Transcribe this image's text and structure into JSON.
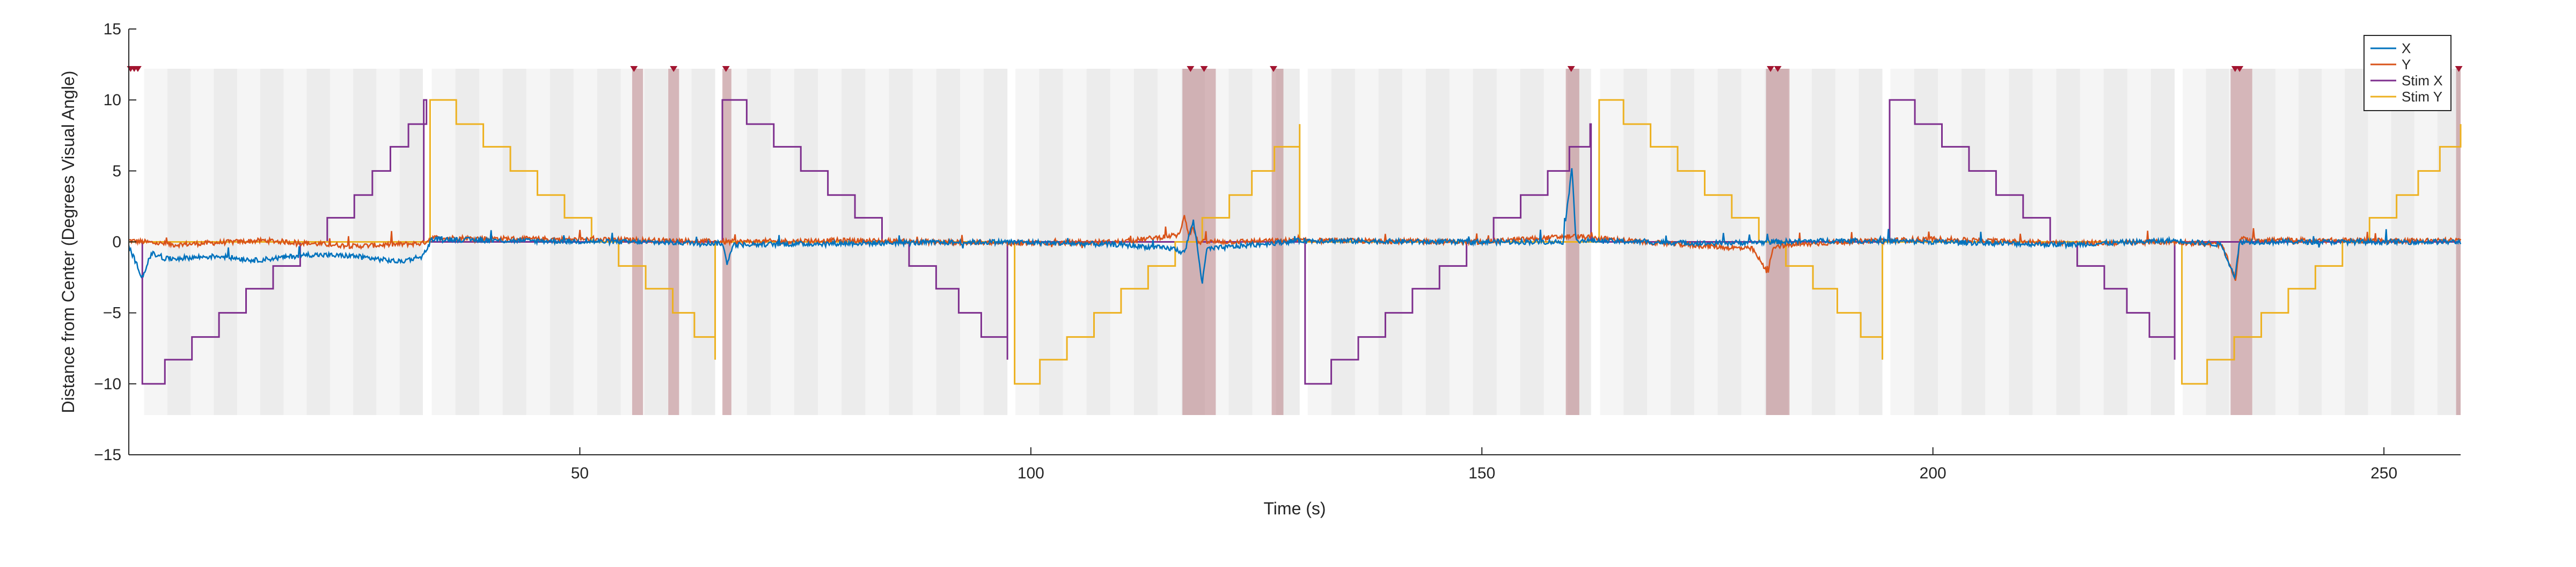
{
  "chart_data": {
    "type": "line",
    "title": "",
    "xlabel": "Time (s)",
    "ylabel": "Distance from Center (Degrees Visual Angle)",
    "xlim": [
      0,
      258.5
    ],
    "ylim": [
      -15,
      15
    ],
    "xticks": [
      50,
      100,
      150,
      200,
      250
    ],
    "yticks": [
      -15,
      -10,
      -5,
      0,
      5,
      10,
      15
    ],
    "grid": false,
    "legend_position": "top-right",
    "legend": [
      "X",
      "Y",
      "Stim X",
      "Stim Y"
    ],
    "colors": {
      "X": "#0072bd",
      "Y": "#d95319",
      "Stim X": "#7e2f8e",
      "Stim Y": "#edb120",
      "trial_shade_light": "#ececec",
      "trial_shade_dark": "#f5f5f5",
      "blink_shade": "#b06a72",
      "blink_marker": "#a2142f"
    },
    "trial_blocks": [
      [
        1.7,
        32.6
      ],
      [
        33.6,
        65.0
      ],
      [
        65.9,
        97.4
      ],
      [
        98.3,
        129.8
      ],
      [
        130.7,
        162.1
      ],
      [
        163.1,
        194.4
      ],
      [
        195.3,
        226.8
      ],
      [
        227.7,
        258.5
      ]
    ],
    "blink_periods": [
      [
        55.8,
        57.0
      ],
      [
        59.8,
        61.0
      ],
      [
        65.8,
        66.8
      ],
      [
        116.8,
        120.5
      ],
      [
        126.7,
        128.0
      ],
      [
        159.3,
        160.8
      ],
      [
        181.5,
        184.1
      ],
      [
        233.0,
        235.4
      ],
      [
        258.0,
        258.5
      ]
    ],
    "blink_markers": [
      0.2,
      0.6,
      1.0,
      56.0,
      60.4,
      66.2,
      117.7,
      119.2,
      126.9,
      159.9,
      182.0,
      182.8,
      233.5,
      234.0,
      258.3
    ],
    "stim_x_steps": [
      [
        0,
        0
      ],
      [
        1.5,
        -10
      ],
      [
        4.0,
        -8.3
      ],
      [
        7.0,
        -6.7
      ],
      [
        10.0,
        -5
      ],
      [
        13.0,
        -3.3
      ],
      [
        16.0,
        -1.7
      ],
      [
        19.0,
        0
      ],
      [
        22.0,
        1.7
      ],
      [
        25.0,
        3.3
      ],
      [
        27.0,
        5
      ],
      [
        29.0,
        6.7
      ],
      [
        31.0,
        8.3
      ],
      [
        33.0,
        10
      ],
      [
        32.7,
        10
      ],
      [
        32.7,
        0
      ],
      [
        65.0,
        0
      ],
      [
        65.8,
        10
      ],
      [
        68.5,
        8.3
      ],
      [
        71.5,
        6.7
      ],
      [
        74.5,
        5
      ],
      [
        77.5,
        3.3
      ],
      [
        80.5,
        1.7
      ],
      [
        83.5,
        0
      ],
      [
        86.5,
        -1.7
      ],
      [
        89.5,
        -3.3
      ],
      [
        92.0,
        -5
      ],
      [
        94.5,
        -6.7
      ],
      [
        97.4,
        -8.3
      ],
      [
        97.4,
        0
      ],
      [
        129.8,
        0
      ],
      [
        130.4,
        -10
      ],
      [
        133.3,
        -8.3
      ],
      [
        136.3,
        -6.7
      ],
      [
        139.3,
        -5
      ],
      [
        142.3,
        -3.3
      ],
      [
        145.3,
        -1.7
      ],
      [
        148.3,
        0
      ],
      [
        151.3,
        1.7
      ],
      [
        154.3,
        3.3
      ],
      [
        157.3,
        5
      ],
      [
        159.7,
        6.7
      ],
      [
        162.0,
        8.3
      ],
      [
        162.1,
        0
      ],
      [
        194.4,
        0
      ],
      [
        195.2,
        10
      ],
      [
        198.0,
        8.3
      ],
      [
        201.0,
        6.7
      ],
      [
        204.0,
        5
      ],
      [
        207.0,
        3.3
      ],
      [
        210.0,
        1.7
      ],
      [
        213.0,
        0
      ],
      [
        216.0,
        -1.7
      ],
      [
        219.0,
        -3.3
      ],
      [
        221.5,
        -5
      ],
      [
        224.0,
        -6.7
      ],
      [
        226.8,
        -8.3
      ],
      [
        226.8,
        0
      ],
      [
        258.5,
        0
      ]
    ],
    "stim_y_steps": [
      [
        0,
        0
      ],
      [
        32.7,
        0
      ],
      [
        33.4,
        10
      ],
      [
        36.3,
        8.3
      ],
      [
        39.3,
        6.7
      ],
      [
        42.3,
        5
      ],
      [
        45.3,
        3.3
      ],
      [
        48.3,
        1.7
      ],
      [
        51.3,
        0
      ],
      [
        54.3,
        -1.7
      ],
      [
        57.3,
        -3.3
      ],
      [
        60.3,
        -5
      ],
      [
        62.7,
        -6.7
      ],
      [
        65.0,
        -8.3
      ],
      [
        65.0,
        0
      ],
      [
        97.4,
        0
      ],
      [
        98.2,
        -10
      ],
      [
        101.0,
        -8.3
      ],
      [
        104.0,
        -6.7
      ],
      [
        107.0,
        -5
      ],
      [
        110.0,
        -3.3
      ],
      [
        113.0,
        -1.7
      ],
      [
        116.0,
        0
      ],
      [
        119.0,
        1.7
      ],
      [
        122.0,
        3.3
      ],
      [
        124.5,
        5
      ],
      [
        127.0,
        6.7
      ],
      [
        129.8,
        8.3
      ],
      [
        129.8,
        0
      ],
      [
        162.1,
        0
      ],
      [
        163.0,
        10
      ],
      [
        165.7,
        8.3
      ],
      [
        168.7,
        6.7
      ],
      [
        171.7,
        5
      ],
      [
        174.7,
        3.3
      ],
      [
        177.7,
        1.7
      ],
      [
        180.7,
        0
      ],
      [
        183.7,
        -1.7
      ],
      [
        186.7,
        -3.3
      ],
      [
        189.4,
        -5
      ],
      [
        192.0,
        -6.7
      ],
      [
        194.4,
        -8.3
      ],
      [
        194.4,
        0
      ],
      [
        226.8,
        0
      ],
      [
        227.6,
        -10
      ],
      [
        230.4,
        -8.3
      ],
      [
        233.4,
        -6.7
      ],
      [
        236.4,
        -5
      ],
      [
        239.4,
        -3.3
      ],
      [
        242.4,
        -1.7
      ],
      [
        245.4,
        0
      ],
      [
        248.4,
        1.7
      ],
      [
        251.4,
        3.3
      ],
      [
        253.8,
        5
      ],
      [
        256.2,
        6.7
      ],
      [
        258.5,
        8.3
      ]
    ],
    "x_gaze_profile": [
      [
        0,
        -0.3
      ],
      [
        1.5,
        -2.5
      ],
      [
        2.5,
        -0.8
      ],
      [
        4,
        -1.2
      ],
      [
        10,
        -1.0
      ],
      [
        14,
        -1.3
      ],
      [
        20,
        -0.9
      ],
      [
        25,
        -1.0
      ],
      [
        30,
        -1.4
      ],
      [
        32.6,
        -1.0
      ],
      [
        33.6,
        0.2
      ],
      [
        40,
        0.1
      ],
      [
        55,
        0.0
      ],
      [
        65.8,
        -0.1
      ],
      [
        66.3,
        -1.5
      ],
      [
        67,
        -0.2
      ],
      [
        80,
        -0.1
      ],
      [
        97.4,
        0
      ],
      [
        110,
        -0.2
      ],
      [
        116,
        -0.5
      ],
      [
        117,
        -0.8
      ],
      [
        118,
        1.5
      ],
      [
        118.5,
        -0.5
      ],
      [
        119,
        -3.0
      ],
      [
        119.5,
        -0.5
      ],
      [
        130,
        0.1
      ],
      [
        145,
        0
      ],
      [
        159,
        0
      ],
      [
        160,
        5.3
      ],
      [
        160.4,
        0.1
      ],
      [
        175,
        -0.1
      ],
      [
        190,
        0.1
      ],
      [
        200,
        0
      ],
      [
        215,
        -0.2
      ],
      [
        226.8,
        0.1
      ],
      [
        232,
        -0.2
      ],
      [
        233.5,
        -2.5
      ],
      [
        234,
        0
      ],
      [
        245,
        0
      ],
      [
        258.5,
        0
      ]
    ],
    "y_gaze_profile": [
      [
        0,
        0.1
      ],
      [
        5,
        -0.2
      ],
      [
        15,
        0.1
      ],
      [
        25,
        -0.3
      ],
      [
        32.6,
        -0.1
      ],
      [
        33.6,
        0.3
      ],
      [
        45,
        0.2
      ],
      [
        60,
        0.1
      ],
      [
        65.8,
        0
      ],
      [
        80,
        0.1
      ],
      [
        97.4,
        -0.1
      ],
      [
        110,
        0
      ],
      [
        116.5,
        0.5
      ],
      [
        117,
        2.0
      ],
      [
        117.5,
        0.5
      ],
      [
        118,
        1.0
      ],
      [
        118.5,
        0
      ],
      [
        120,
        0
      ],
      [
        130,
        0.1
      ],
      [
        150,
        0
      ],
      [
        160,
        0.4
      ],
      [
        170,
        -0.1
      ],
      [
        180,
        -0.5
      ],
      [
        181.7,
        -2.2
      ],
      [
        182.3,
        -0.3
      ],
      [
        190,
        0
      ],
      [
        200,
        0.2
      ],
      [
        215,
        -0.1
      ],
      [
        226.8,
        0
      ],
      [
        232,
        -0.2
      ],
      [
        233.6,
        -2.7
      ],
      [
        234,
        0.2
      ],
      [
        240,
        0.1
      ],
      [
        258.5,
        0.1
      ]
    ]
  }
}
